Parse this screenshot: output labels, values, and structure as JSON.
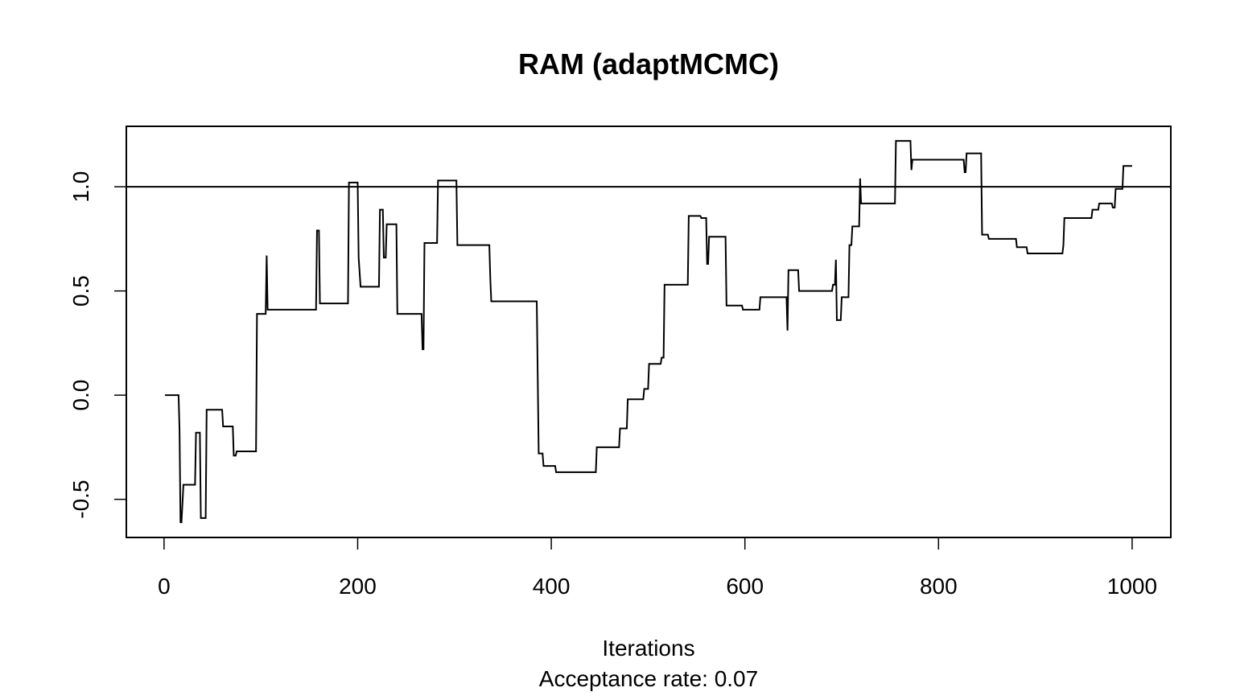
{
  "chart_data": {
    "type": "line",
    "title": "RAM (adaptMCMC)",
    "xlabel": "Iterations",
    "subtitle": "Acceptance rate: 0.07",
    "color": "#000000",
    "reference_line": 1,
    "xlim": [
      -38.96,
      1039.96
    ],
    "ylim": [
      -0.683,
      1.29
    ],
    "xticks": [
      0,
      200,
      400,
      600,
      800,
      1000
    ],
    "yticks": [
      -0.5,
      {
        "value": 0,
        "label": "0.0"
      },
      0.5,
      {
        "value": 1,
        "label": "1.0"
      }
    ],
    "x": [
      1,
      15,
      16,
      17,
      18,
      20,
      32,
      33,
      37,
      38,
      43,
      44,
      60,
      61,
      71,
      72,
      74,
      75,
      95,
      96,
      105,
      106,
      107,
      157,
      158,
      160,
      161,
      190,
      191,
      200,
      201,
      203,
      222,
      223,
      226,
      227,
      229,
      230,
      240,
      241,
      266,
      267,
      268,
      269,
      282,
      283,
      302,
      303,
      336,
      337,
      338,
      385,
      387,
      391,
      392,
      404,
      405,
      446,
      447,
      470,
      471,
      478,
      479,
      495,
      496,
      500,
      501,
      513,
      514,
      516,
      517,
      541,
      542,
      554,
      555,
      560,
      561,
      562,
      563,
      580,
      581,
      597,
      598,
      615,
      616,
      643,
      644,
      645,
      655,
      656,
      690,
      691,
      693,
      694,
      695,
      699,
      700,
      707,
      708,
      710,
      711,
      718,
      719,
      720,
      755,
      756,
      771,
      772,
      773,
      826,
      827,
      828,
      829,
      844,
      845,
      851,
      852,
      880,
      881,
      891,
      892,
      928,
      929,
      930,
      958,
      959,
      965,
      966,
      979,
      980,
      982,
      983,
      990,
      991,
      1000
    ],
    "values": [
      0,
      0,
      -0.17,
      -0.61,
      -0.61,
      -0.43,
      -0.43,
      -0.18,
      -0.18,
      -0.59,
      -0.59,
      -0.07,
      -0.07,
      -0.15,
      -0.15,
      -0.29,
      -0.29,
      -0.27,
      -0.27,
      0.39,
      0.39,
      0.67,
      0.41,
      0.41,
      0.79,
      0.79,
      0.44,
      0.44,
      1.02,
      1.02,
      0.66,
      0.52,
      0.52,
      0.89,
      0.89,
      0.66,
      0.66,
      0.82,
      0.82,
      0.39,
      0.39,
      0.22,
      0.22,
      0.73,
      0.73,
      1.03,
      1.03,
      0.72,
      0.72,
      0.56,
      0.45,
      0.45,
      -0.28,
      -0.28,
      -0.34,
      -0.34,
      -0.37,
      -0.37,
      -0.25,
      -0.25,
      -0.16,
      -0.16,
      -0.02,
      -0.02,
      0.03,
      0.03,
      0.15,
      0.15,
      0.18,
      0.18,
      0.53,
      0.53,
      0.86,
      0.86,
      0.85,
      0.85,
      0.63,
      0.63,
      0.76,
      0.76,
      0.43,
      0.43,
      0.41,
      0.41,
      0.47,
      0.47,
      0.31,
      0.6,
      0.6,
      0.5,
      0.5,
      0.53,
      0.53,
      0.65,
      0.36,
      0.36,
      0.47,
      0.47,
      0.72,
      0.72,
      0.81,
      0.81,
      1.04,
      0.92,
      0.92,
      1.22,
      1.22,
      1.08,
      1.13,
      1.13,
      1.07,
      1.07,
      1.16,
      1.16,
      0.77,
      0.77,
      0.75,
      0.75,
      0.71,
      0.71,
      0.68,
      0.68,
      0.72,
      0.85,
      0.85,
      0.89,
      0.89,
      0.92,
      0.92,
      0.9,
      0.9,
      0.99,
      0.99,
      1.1,
      1.1
    ]
  }
}
